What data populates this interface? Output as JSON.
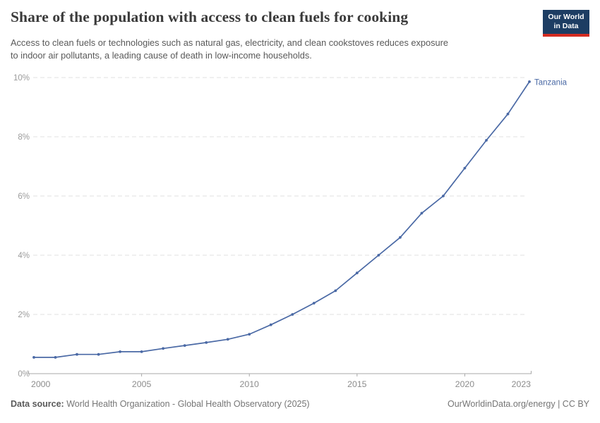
{
  "header": {
    "title": "Share of the population with access to clean fuels for cooking",
    "subtitle_line1": "Access to clean fuels or technologies such as natural gas, electricity, and clean cookstoves reduces exposure",
    "subtitle_line2": "to indoor air pollutants, a leading cause of death in low-income households.",
    "logo_line1": "Our World",
    "logo_line2": "in Data",
    "logo_bg_color": "#1d3d63",
    "logo_accent_color": "#d42b21"
  },
  "chart_data": {
    "type": "line",
    "title": "Share of the population with access to clean fuels for cooking",
    "unit": "%",
    "xlabel": "",
    "ylabel": "",
    "xlim": [
      2000,
      2023
    ],
    "ylim": [
      0,
      10
    ],
    "x_ticks": [
      2000,
      2005,
      2010,
      2015,
      2020,
      2023
    ],
    "y_ticks": [
      0,
      2,
      4,
      6,
      8,
      10
    ],
    "y_tick_suffix": "%",
    "grid": "horizontal-dashed",
    "legend_position": "end-of-line-label",
    "series": [
      {
        "name": "Tanzania",
        "color": "#4a69a5",
        "x": [
          2000,
          2001,
          2002,
          2003,
          2004,
          2005,
          2006,
          2007,
          2008,
          2009,
          2010,
          2011,
          2012,
          2013,
          2014,
          2015,
          2016,
          2017,
          2018,
          2019,
          2020,
          2021,
          2022,
          2023
        ],
        "values": [
          0.55,
          0.55,
          0.65,
          0.65,
          0.74,
          0.74,
          0.85,
          0.95,
          1.05,
          1.16,
          1.33,
          1.65,
          2.0,
          2.38,
          2.8,
          3.4,
          4.0,
          4.6,
          5.42,
          6.0,
          6.94,
          7.88,
          8.77,
          9.86
        ]
      }
    ],
    "colors": {
      "gridline": "#e0e0e0",
      "axis": "#a8a8a8",
      "y_tick_label": "#9b9b9b",
      "x_tick_label": "#8c8c8c"
    }
  },
  "footer": {
    "source_label": "Data source:",
    "source_text": "World Health Organization - Global Health Observatory (2025)",
    "credit": "OurWorldinData.org/energy | CC BY"
  }
}
